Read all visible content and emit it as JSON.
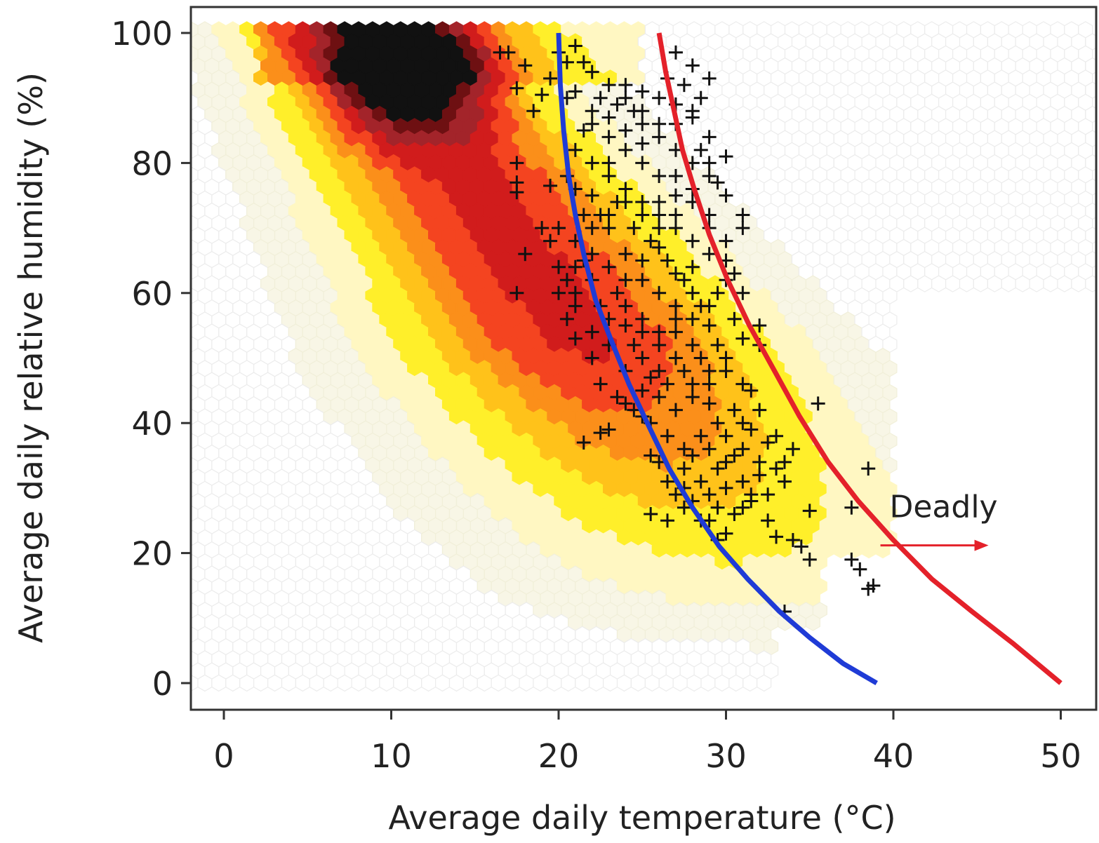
{
  "chart_data": {
    "type": "scatter",
    "xlabel": "Average daily temperature (°C)",
    "ylabel": "Average daily relative humidity (%)",
    "xlim": [
      -2,
      52
    ],
    "ylim": [
      -4,
      104
    ],
    "x_ticks": [
      "0",
      "10",
      "20",
      "30",
      "40",
      "50"
    ],
    "y_ticks": [
      "0",
      "20",
      "40",
      "60",
      "80",
      "100"
    ],
    "grid": false,
    "background_density": {
      "type": "hexbin",
      "palette": [
        "#fff7c2",
        "#ffef2a",
        "#ffc21a",
        "#fb8f1a",
        "#f44420",
        "#d11c1c",
        "#a3242a",
        "#6e1012",
        "#111111"
      ],
      "peak_temperature": 11,
      "peak_humidity": 94
    },
    "series": [
      {
        "type": "line",
        "color": "#1f3bd6",
        "x": [
          20.0,
          20.1,
          20.3,
          20.6,
          21.0,
          21.5,
          22.2,
          23.1,
          24.2,
          25.3,
          26.6,
          28.0,
          29.6,
          31.3,
          33.2,
          35.0,
          37.0,
          39.0
        ],
        "y": [
          100,
          92,
          85,
          78,
          72,
          66,
          59,
          53,
          46,
          40,
          33,
          27,
          21,
          16,
          11,
          7,
          3,
          0
        ]
      },
      {
        "type": "line",
        "color": "#e4212a",
        "x": [
          26.0,
          26.4,
          26.9,
          27.4,
          28.1,
          29.0,
          30.1,
          31.4,
          32.9,
          34.4,
          36.1,
          37.9,
          40.0,
          42.3,
          44.7,
          47.2,
          50.0
        ],
        "y": [
          100,
          94,
          88,
          82,
          76,
          69,
          62,
          55,
          48,
          41,
          34,
          28,
          22,
          16,
          11,
          6,
          0
        ]
      },
      {
        "type": "scatter",
        "marker": "+",
        "color": "#111111",
        "points": [
          [
            16.5,
            97
          ],
          [
            17,
            97
          ],
          [
            18,
            95
          ],
          [
            17.5,
            91.5
          ],
          [
            18.5,
            88
          ],
          [
            19.0,
            90.5
          ],
          [
            19.5,
            93
          ],
          [
            20,
            97
          ],
          [
            20.5,
            95.5
          ],
          [
            21.5,
            95.5
          ],
          [
            21,
            98
          ],
          [
            22,
            94
          ],
          [
            23,
            92
          ],
          [
            24,
            92
          ],
          [
            25,
            91
          ],
          [
            27,
            97
          ],
          [
            28,
            95
          ],
          [
            29,
            93
          ],
          [
            28.5,
            90
          ],
          [
            28,
            87
          ],
          [
            29,
            84
          ],
          [
            28.5,
            82
          ],
          [
            30,
            81
          ],
          [
            27.5,
            92
          ],
          [
            26.5,
            93
          ],
          [
            17.5,
            80
          ],
          [
            17.5,
            75.5
          ],
          [
            17.5,
            77
          ],
          [
            17.5,
            60
          ],
          [
            18.0,
            66
          ],
          [
            19.0,
            70
          ],
          [
            19.5,
            76.5
          ],
          [
            20,
            60
          ],
          [
            21,
            53
          ],
          [
            20.5,
            56
          ],
          [
            22,
            50
          ],
          [
            21.5,
            37
          ],
          [
            23,
            39
          ],
          [
            22.5,
            38.5
          ],
          [
            23.5,
            44
          ],
          [
            22.5,
            46
          ],
          [
            24,
            43
          ],
          [
            25,
            41
          ],
          [
            25.5,
            35
          ],
          [
            26,
            34
          ],
          [
            25.5,
            26
          ],
          [
            26.5,
            25
          ],
          [
            27.5,
            27
          ],
          [
            29,
            25
          ],
          [
            29.5,
            22
          ],
          [
            30,
            23
          ],
          [
            31,
            27
          ],
          [
            31.5,
            29
          ],
          [
            32.5,
            25
          ],
          [
            33,
            22.5
          ],
          [
            34,
            22
          ],
          [
            34.5,
            21
          ],
          [
            35,
            19
          ],
          [
            35,
            26.5
          ],
          [
            37.5,
            27
          ],
          [
            38.5,
            33
          ],
          [
            37.5,
            19
          ],
          [
            38,
            17.5
          ],
          [
            38.5,
            14.5
          ],
          [
            38.8,
            15
          ],
          [
            35.5,
            43
          ],
          [
            31.5,
            45
          ],
          [
            32,
            52
          ],
          [
            32,
            55
          ],
          [
            31,
            60
          ],
          [
            30.5,
            63
          ],
          [
            30,
            68
          ],
          [
            31,
            72
          ],
          [
            31,
            70
          ],
          [
            30,
            75
          ],
          [
            29,
            78
          ],
          [
            29.5,
            77
          ],
          [
            28,
            80
          ],
          [
            27,
            82
          ],
          [
            26,
            84
          ],
          [
            25,
            86
          ],
          [
            24.5,
            88
          ],
          [
            23.5,
            89
          ],
          [
            22,
            88
          ],
          [
            21.5,
            85
          ],
          [
            21,
            82
          ],
          [
            22,
            80
          ],
          [
            23,
            78
          ],
          [
            24,
            76
          ],
          [
            25,
            74
          ],
          [
            26,
            72
          ],
          [
            27,
            70
          ],
          [
            28,
            68
          ],
          [
            29,
            66
          ],
          [
            30,
            62
          ],
          [
            29,
            58
          ],
          [
            28,
            56
          ],
          [
            27,
            54
          ],
          [
            26,
            52
          ],
          [
            25,
            50
          ],
          [
            24,
            48
          ],
          [
            23,
            56
          ],
          [
            22.5,
            58
          ],
          [
            22,
            62
          ],
          [
            21.5,
            65
          ],
          [
            21,
            68
          ],
          [
            21.5,
            72
          ],
          [
            22,
            75
          ],
          [
            23,
            70
          ],
          [
            24,
            66
          ],
          [
            25,
            62
          ],
          [
            26,
            60
          ],
          [
            27,
            58
          ],
          [
            28,
            60
          ],
          [
            29,
            55
          ],
          [
            28.5,
            50
          ],
          [
            27.5,
            48
          ],
          [
            26.5,
            46
          ],
          [
            25.5,
            47
          ],
          [
            24.5,
            52
          ],
          [
            23.5,
            60
          ],
          [
            24,
            62
          ],
          [
            25,
            65
          ],
          [
            26,
            67
          ],
          [
            27,
            63
          ],
          [
            28,
            64
          ],
          [
            29,
            70
          ],
          [
            27,
            75
          ],
          [
            26,
            78
          ],
          [
            25,
            80
          ],
          [
            24,
            82
          ],
          [
            23,
            84
          ],
          [
            22,
            86
          ],
          [
            24,
            85
          ],
          [
            26,
            86
          ],
          [
            25,
            83
          ],
          [
            23,
            80
          ],
          [
            22.5,
            72
          ],
          [
            23.5,
            74
          ],
          [
            24.5,
            70
          ],
          [
            25.5,
            68
          ],
          [
            26.5,
            65
          ],
          [
            27.5,
            62
          ],
          [
            28.5,
            58
          ],
          [
            29.5,
            52
          ],
          [
            30,
            48
          ],
          [
            31,
            46
          ],
          [
            30.5,
            42
          ],
          [
            29.5,
            40
          ],
          [
            28.5,
            38
          ],
          [
            27.5,
            36
          ],
          [
            26.5,
            38
          ],
          [
            25.5,
            40
          ],
          [
            24.5,
            42
          ],
          [
            25,
            45
          ],
          [
            26,
            44
          ],
          [
            27,
            42
          ],
          [
            28,
            44
          ],
          [
            29,
            46
          ],
          [
            30,
            38
          ],
          [
            31,
            36
          ],
          [
            32,
            34
          ],
          [
            33,
            33
          ],
          [
            33.5,
            31
          ],
          [
            32.5,
            37
          ],
          [
            31.5,
            39
          ],
          [
            30.5,
            35
          ],
          [
            29.5,
            33
          ],
          [
            28.5,
            31
          ],
          [
            27.5,
            33
          ],
          [
            26.5,
            31
          ],
          [
            27,
            29
          ],
          [
            28,
            28
          ],
          [
            29,
            29
          ],
          [
            30,
            30
          ],
          [
            31,
            31
          ],
          [
            32,
            32
          ],
          [
            30.5,
            26
          ],
          [
            29.5,
            27
          ],
          [
            28.5,
            25
          ],
          [
            27.5,
            30
          ],
          [
            28,
            35
          ],
          [
            29,
            36
          ],
          [
            30,
            34
          ],
          [
            31,
            40
          ],
          [
            32,
            42
          ],
          [
            33,
            38
          ],
          [
            34,
            36
          ],
          [
            33.5,
            34
          ],
          [
            32.5,
            29
          ],
          [
            31.5,
            28
          ],
          [
            27,
            50
          ],
          [
            28,
            52
          ],
          [
            29,
            48
          ],
          [
            30,
            50
          ],
          [
            30.5,
            56
          ],
          [
            31,
            53
          ],
          [
            29.5,
            60
          ],
          [
            30,
            65
          ],
          [
            29,
            72
          ],
          [
            28,
            74
          ],
          [
            27,
            72
          ],
          [
            26,
            70
          ],
          [
            25,
            72
          ],
          [
            24,
            74
          ],
          [
            23,
            72
          ],
          [
            22,
            70
          ],
          [
            21,
            64
          ],
          [
            22,
            66
          ],
          [
            23,
            64
          ],
          [
            24,
            58
          ],
          [
            25,
            56
          ],
          [
            26,
            54
          ],
          [
            27,
            56
          ],
          [
            28,
            46
          ],
          [
            29,
            43
          ],
          [
            26,
            48
          ],
          [
            25,
            54
          ],
          [
            24,
            55
          ],
          [
            23,
            52
          ],
          [
            22,
            54
          ],
          [
            21,
            60
          ],
          [
            20.5,
            62
          ],
          [
            21,
            58
          ],
          [
            26,
            74
          ],
          [
            27,
            78
          ],
          [
            28,
            76
          ],
          [
            29,
            80
          ],
          [
            27,
            86
          ],
          [
            28,
            88
          ],
          [
            27,
            89
          ],
          [
            26,
            90
          ],
          [
            24,
            90
          ],
          [
            23,
            87
          ],
          [
            25,
            88
          ],
          [
            22.5,
            90
          ],
          [
            21,
            91
          ],
          [
            20.5,
            90
          ],
          [
            21,
            76
          ],
          [
            20.5,
            78
          ],
          [
            20,
            70
          ],
          [
            19.5,
            68
          ],
          [
            20,
            64
          ],
          [
            33.5,
            11
          ]
        ]
      }
    ],
    "annotations": [
      {
        "text": "Deadly",
        "x": 43,
        "y": 25.5
      }
    ]
  }
}
